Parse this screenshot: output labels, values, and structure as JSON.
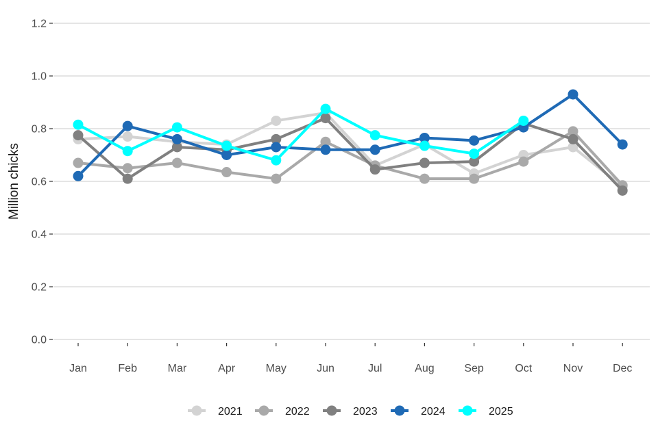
{
  "chart_data": {
    "type": "line",
    "title": "",
    "xlabel": "",
    "ylabel": "Million chicks",
    "categories": [
      "Jan",
      "Feb",
      "Mar",
      "Apr",
      "May",
      "Jun",
      "Jul",
      "Aug",
      "Sep",
      "Oct",
      "Nov",
      "Dec"
    ],
    "ylim": [
      0,
      1.2
    ],
    "yticks": [
      "0.0",
      "0.2",
      "0.4",
      "0.6",
      "0.8",
      "1.0",
      "1.2"
    ],
    "grid": "horizontal",
    "legend_position": "bottom",
    "series": [
      {
        "name": "2021",
        "color": "#d3d3d3",
        "values": [
          0.76,
          0.77,
          0.75,
          0.74,
          0.83,
          0.86,
          0.66,
          0.74,
          0.63,
          0.7,
          0.73,
          0.58
        ]
      },
      {
        "name": "2022",
        "color": "#a9a9a9",
        "values": [
          0.67,
          0.65,
          0.67,
          0.635,
          0.61,
          0.75,
          0.66,
          0.61,
          0.61,
          0.675,
          0.79,
          0.585
        ]
      },
      {
        "name": "2023",
        "color": "#808080",
        "values": [
          0.775,
          0.61,
          0.73,
          0.72,
          0.76,
          0.84,
          0.645,
          0.67,
          0.675,
          0.82,
          0.76,
          0.565
        ]
      },
      {
        "name": "2024",
        "color": "#1f6ab5",
        "values": [
          0.62,
          0.81,
          0.76,
          0.7,
          0.73,
          0.72,
          0.72,
          0.765,
          0.755,
          0.805,
          0.93,
          0.74
        ]
      },
      {
        "name": "2025",
        "color": "#00ffff",
        "values": [
          0.815,
          0.715,
          0.805,
          0.735,
          0.68,
          0.875,
          0.775,
          0.735,
          0.705,
          0.83,
          null,
          null
        ]
      }
    ]
  }
}
